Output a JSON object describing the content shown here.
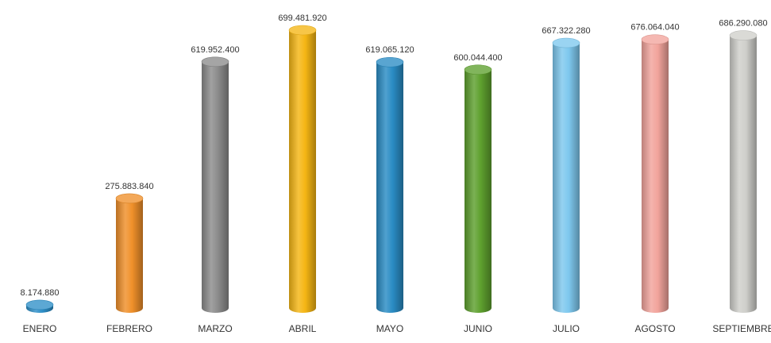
{
  "chart_data": {
    "type": "bar",
    "style": "3d-cylinder",
    "categories": [
      "ENERO",
      "FEBRERO",
      "MARZO",
      "ABRIL",
      "MAYO",
      "JUNIO",
      "JULIO",
      "AGOSTO",
      "SEPTIEMBRE"
    ],
    "values": [
      8174880,
      275883840,
      619952400,
      699481920,
      619065120,
      600044400,
      667322280,
      676064040,
      686290080
    ],
    "value_labels": [
      "8.174.880",
      "275.883.840",
      "619.952.400",
      "699.481.920",
      "619.065.120",
      "600.044.400",
      "667.322.280",
      "676.064.040",
      "686.290.080"
    ],
    "colors": [
      "#2E8FC8",
      "#F0902A",
      "#8C8C8C",
      "#F5B614",
      "#2A8CC4",
      "#5EA02E",
      "#7EC8EE",
      "#F2A49C",
      "#CFCFCB"
    ],
    "title": "",
    "xlabel": "",
    "ylabel": "",
    "grid": false,
    "legend": "none"
  }
}
